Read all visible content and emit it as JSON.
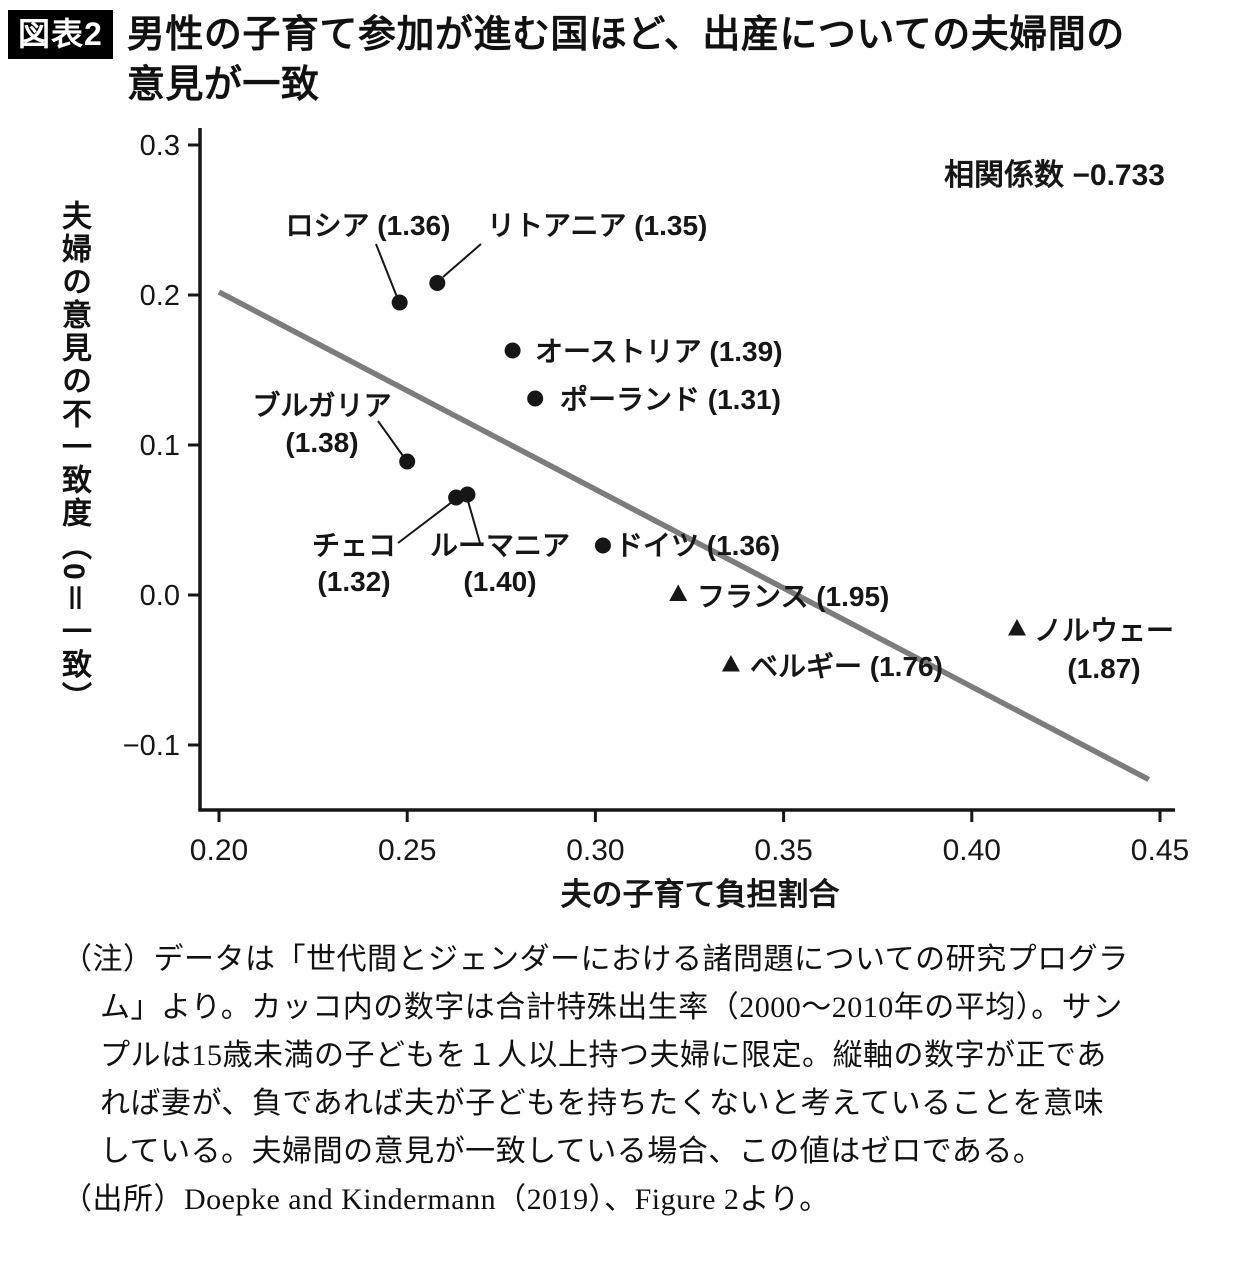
{
  "header": {
    "badge": "図表2",
    "title_line1": "男性の子育て参加が進む国ほど、出産についての夫婦間の",
    "title_line2": "意見が一致"
  },
  "chart_data": {
    "type": "scatter",
    "xlabel": "夫の子育て負担割合",
    "ylabel": "夫婦の意見の不一致度（0＝一致）",
    "annotation": "相関係数 −0.733",
    "xlim": [
      0.2,
      0.45
    ],
    "ylim": [
      -0.143,
      0.311
    ],
    "grid": false,
    "x_ticks": [
      0.2,
      0.25,
      0.3,
      0.35,
      0.4,
      0.45
    ],
    "x_tick_labels": [
      "0.20",
      "0.25",
      "0.30",
      "0.35",
      "0.40",
      "0.45"
    ],
    "y_ticks": [
      0.3,
      0.2,
      0.1,
      0.0,
      -0.1
    ],
    "y_tick_labels": [
      "0.3",
      "0.2",
      "0.1",
      "0.0",
      "−0.1"
    ],
    "points": [
      {
        "id": "russia",
        "label": "ロシア",
        "tfr": "1.36",
        "x": 0.248,
        "y": 0.195,
        "marker": "circle"
      },
      {
        "id": "lithuania",
        "label": "リトアニア",
        "tfr": "1.35",
        "x": 0.258,
        "y": 0.208,
        "marker": "circle"
      },
      {
        "id": "austria",
        "label": "オーストリア",
        "tfr": "1.39",
        "x": 0.278,
        "y": 0.163,
        "marker": "circle"
      },
      {
        "id": "poland",
        "label": "ポーランド",
        "tfr": "1.31",
        "x": 0.284,
        "y": 0.131,
        "marker": "circle"
      },
      {
        "id": "bulgaria",
        "label": "ブルガリア",
        "tfr": "1.38",
        "x": 0.25,
        "y": 0.089,
        "marker": "circle"
      },
      {
        "id": "czech",
        "label": "チェコ",
        "tfr": "1.32",
        "x": 0.263,
        "y": 0.065,
        "marker": "circle"
      },
      {
        "id": "romania",
        "label": "ルーマニア",
        "tfr": "1.40",
        "x": 0.266,
        "y": 0.067,
        "marker": "circle"
      },
      {
        "id": "germany",
        "label": "ドイツ",
        "tfr": "1.36",
        "x": 0.302,
        "y": 0.033,
        "marker": "circle"
      },
      {
        "id": "france",
        "label": "フランス",
        "tfr": "1.95",
        "x": 0.322,
        "y": 0.001,
        "marker": "triangle"
      },
      {
        "id": "belgium",
        "label": "ベルギー",
        "tfr": "1.76",
        "x": 0.336,
        "y": -0.046,
        "marker": "triangle"
      },
      {
        "id": "norway",
        "label": "ノルウェー",
        "tfr": "1.87",
        "x": 0.412,
        "y": -0.022,
        "marker": "triangle"
      }
    ],
    "trend_line": {
      "x1": 0.2,
      "y1": 0.202,
      "x2": 0.447,
      "y2": -0.123,
      "color": "#7c7c7c"
    },
    "ink_color": "#161616"
  },
  "notes": {
    "lines": [
      {
        "indent": 0,
        "text": "（注）データは「世代間とジェンダーにおける諸問題についての研究プログラ"
      },
      {
        "indent": 1,
        "text": "ム」より。カッコ内の数字は合計特殊出生率（2000〜2010年の平均）。サン"
      },
      {
        "indent": 1,
        "text": "プルは15歳未満の子どもを１人以上持つ夫婦に限定。縦軸の数字が正であ"
      },
      {
        "indent": 1,
        "text": "れば妻が、負であれば夫が子どもを持ちたくないと考えていることを意味"
      },
      {
        "indent": 1,
        "text": "している。夫婦間の意見が一致している場合、この値はゼロである。"
      },
      {
        "indent": 0,
        "text": "（出所）Doepke and Kindermann（2019）、Figure 2より。"
      }
    ]
  }
}
